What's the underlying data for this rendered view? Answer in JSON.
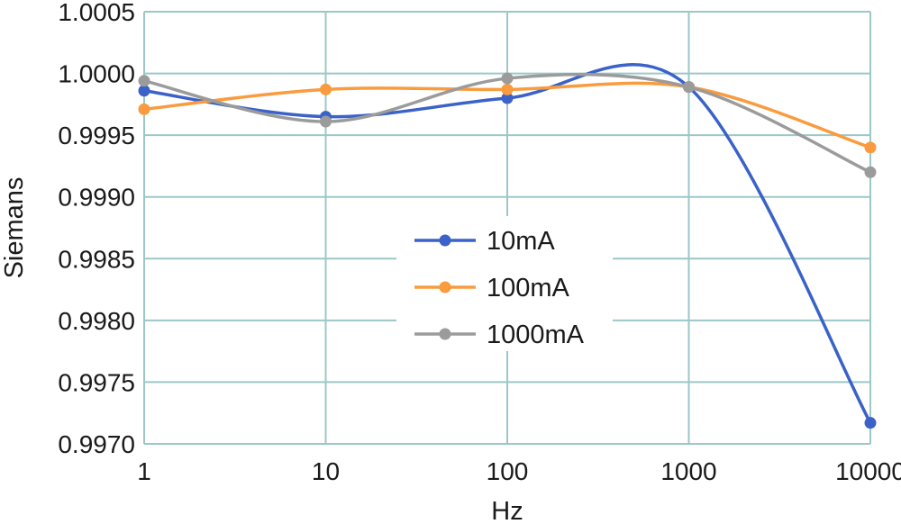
{
  "chart_data": {
    "type": "line",
    "title": "",
    "xlabel": "Hz",
    "ylabel": "Siemans",
    "x_scale": "log",
    "x": [
      1,
      10,
      100,
      1000,
      10000
    ],
    "x_tick_labels": [
      "1",
      "10",
      "100",
      "1000",
      "10000"
    ],
    "ylim": [
      0.997,
      1.0005
    ],
    "y_tick_values": [
      0.997,
      0.9975,
      0.998,
      0.9985,
      0.999,
      0.9995,
      1.0,
      1.0005
    ],
    "y_tick_labels": [
      "0.9970",
      "0.9975",
      "0.9980",
      "0.9985",
      "0.9990",
      "0.9995",
      "1.0000",
      "1.0005"
    ],
    "grid": true,
    "smooth": true,
    "legend_position": "center",
    "series": [
      {
        "name": "10mA",
        "color": "#3a62c8",
        "values": [
          0.99986,
          0.99965,
          0.9998,
          0.99989,
          0.99717
        ]
      },
      {
        "name": "100mA",
        "color": "#f99b3e",
        "values": [
          0.99971,
          0.99987,
          0.99987,
          0.99989,
          0.9994
        ]
      },
      {
        "name": "1000mA",
        "color": "#9b9b9b",
        "values": [
          0.99994,
          0.99961,
          0.99996,
          0.99989,
          0.9992
        ]
      }
    ]
  }
}
